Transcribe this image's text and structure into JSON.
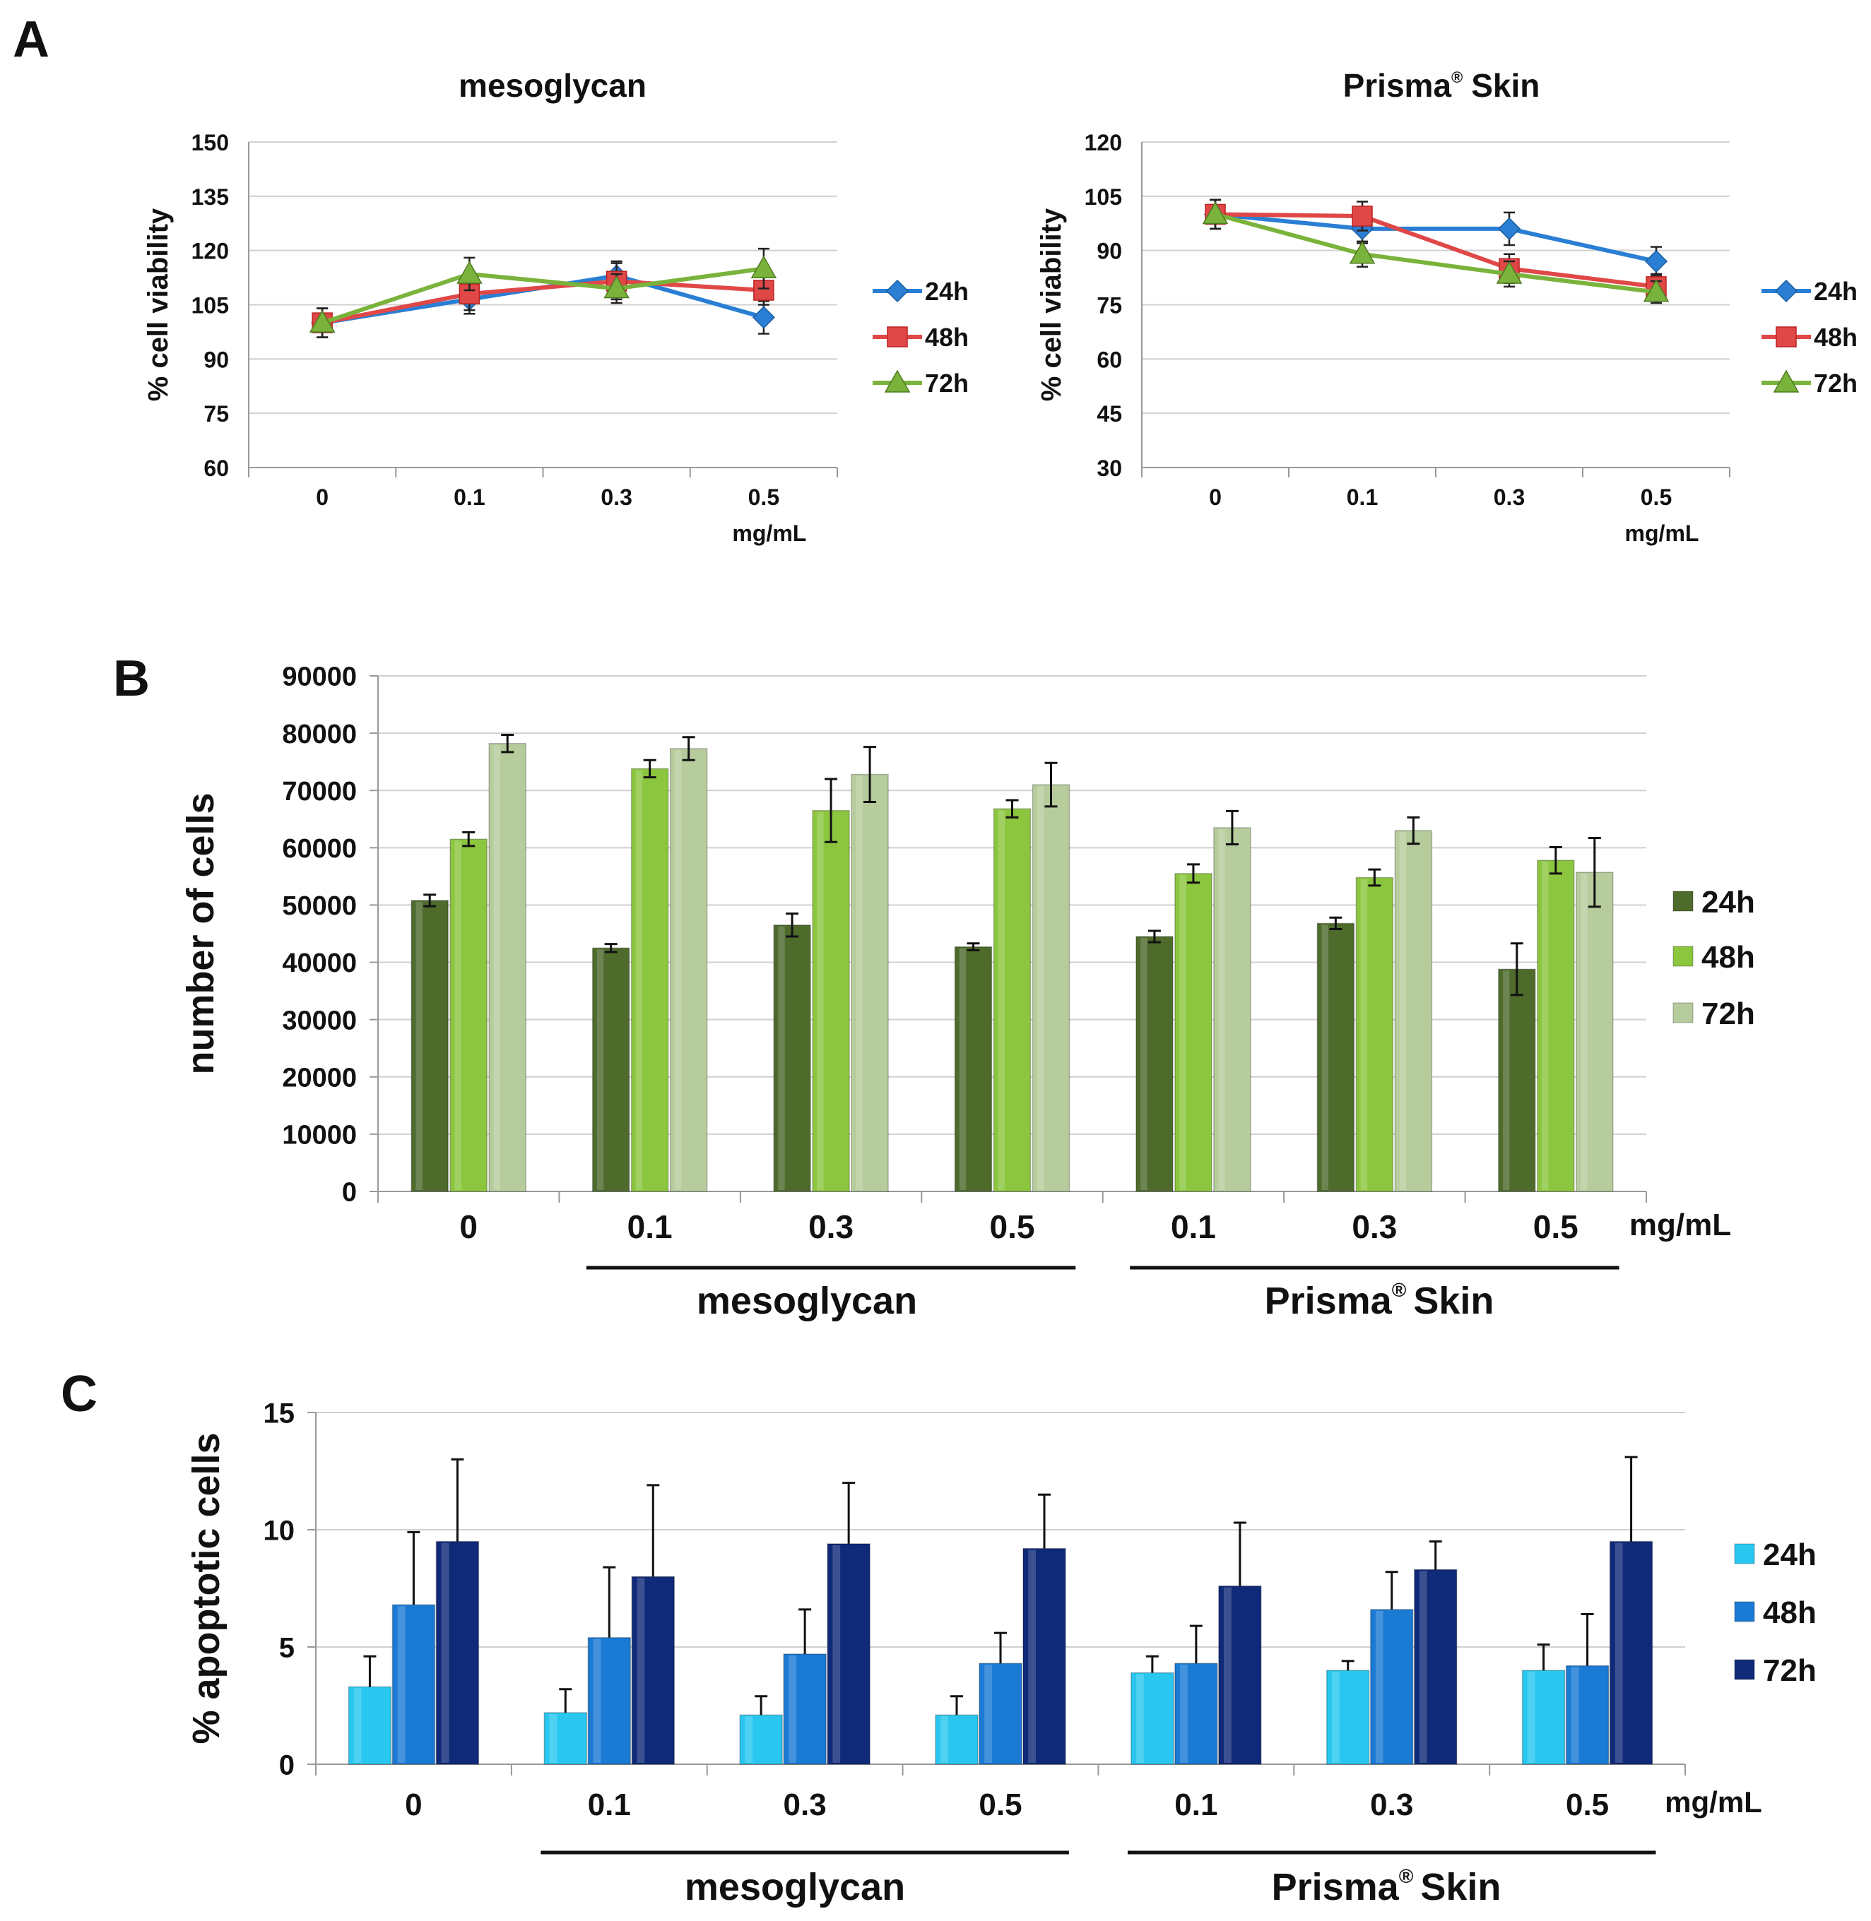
{
  "colors": {
    "series_24h_line": "#2a7fd4",
    "series_48h_line": "#e04848",
    "series_72h_line": "#7ab33b",
    "bar_green_24h": "#4e6b2c",
    "bar_green_48h": "#8cc63f",
    "bar_green_72h": "#b6cc9c",
    "bar_blue_24h": "#29c7ef",
    "bar_blue_48h": "#1a7ad4",
    "bar_blue_72h": "#0f2a78",
    "grid": "#d0d0d0"
  },
  "panels": {
    "a": "A",
    "b": "B",
    "c": "C"
  },
  "labels": {
    "mesoglycan": "mesoglycan",
    "prisma": "Prisma",
    "reg": "®",
    "skin": "Skin",
    "unit": "mg/mL"
  },
  "chart_data": [
    {
      "id": "A1",
      "type": "line",
      "title": "mesoglycan",
      "xlabel": "mg/mL",
      "ylabel": "% cell viability",
      "categories": [
        "0",
        "0.1",
        "0.3",
        "0.5"
      ],
      "ylim": [
        60,
        150
      ],
      "yticks": [
        60,
        75,
        90,
        105,
        120,
        135,
        150
      ],
      "series": [
        {
          "name": "24h",
          "values": [
            100,
            106.5,
            113,
            101.5
          ],
          "errors": [
            4,
            4,
            4,
            4.5
          ]
        },
        {
          "name": "48h",
          "values": [
            100,
            108,
            111.5,
            109
          ],
          "errors": [
            4,
            4.5,
            5,
            4
          ]
        },
        {
          "name": "72h",
          "values": [
            100,
            113.5,
            109.5,
            115
          ],
          "errors": [
            4,
            4.5,
            4,
            5.5
          ]
        }
      ]
    },
    {
      "id": "A2",
      "type": "line",
      "title": "Prisma® Skin",
      "xlabel": "mg/mL",
      "ylabel": "% cell viability",
      "categories": [
        "0",
        "0.1",
        "0.3",
        "0.5"
      ],
      "ylim": [
        30,
        120
      ],
      "yticks": [
        30,
        45,
        60,
        75,
        90,
        105,
        120
      ],
      "series": [
        {
          "name": "24h",
          "values": [
            100,
            96,
            96,
            87
          ],
          "errors": [
            4,
            4,
            4.5,
            4
          ]
        },
        {
          "name": "48h",
          "values": [
            100,
            99.5,
            85,
            80
          ],
          "errors": [
            4,
            4,
            4,
            3.5
          ]
        },
        {
          "name": "72h",
          "values": [
            100,
            89,
            83.5,
            78.5
          ],
          "errors": [
            4,
            3.5,
            3.5,
            3
          ]
        }
      ]
    },
    {
      "id": "B",
      "type": "bar",
      "ylabel": "number of cells",
      "xlabel": "mg/mL",
      "categories": [
        "0",
        "0.1",
        "0.3",
        "0.5",
        "0.1",
        "0.3",
        "0.5"
      ],
      "groups": [
        {
          "label": "mesoglycan",
          "from": 1,
          "to": 3
        },
        {
          "label": "Prisma® Skin",
          "from": 4,
          "to": 6
        }
      ],
      "ylim": [
        0,
        90000
      ],
      "yticks": [
        0,
        10000,
        20000,
        30000,
        40000,
        50000,
        60000,
        70000,
        80000,
        90000
      ],
      "series": [
        {
          "name": "24h",
          "values": [
            50800,
            42500,
            46500,
            42700,
            44500,
            46800,
            38800
          ],
          "errors": [
            1000,
            700,
            2000,
            600,
            1000,
            1000,
            4500
          ]
        },
        {
          "name": "48h",
          "values": [
            61500,
            73800,
            66500,
            66800,
            55500,
            54800,
            57800
          ],
          "errors": [
            1200,
            1500,
            5500,
            1500,
            1600,
            1400,
            2300
          ]
        },
        {
          "name": "72h",
          "values": [
            78200,
            77300,
            72800,
            71000,
            63500,
            63000,
            55700
          ],
          "errors": [
            1500,
            2000,
            4800,
            3800,
            2900,
            2300,
            6000
          ]
        }
      ]
    },
    {
      "id": "C",
      "type": "bar",
      "ylabel": "% apoptotic cells",
      "xlabel": "mg/mL",
      "categories": [
        "0",
        "0.1",
        "0.3",
        "0.5",
        "0.1",
        "0.3",
        "0.5"
      ],
      "groups": [
        {
          "label": "mesoglycan",
          "from": 1,
          "to": 3
        },
        {
          "label": "Prisma® Skin",
          "from": 4,
          "to": 6
        }
      ],
      "ylim": [
        0,
        15
      ],
      "yticks": [
        0,
        5,
        10,
        15
      ],
      "series": [
        {
          "name": "24h",
          "values": [
            3.3,
            2.2,
            2.1,
            2.1,
            3.9,
            4.0,
            4.0
          ],
          "errors": [
            1.3,
            1.0,
            0.8,
            0.8,
            0.7,
            0.4,
            1.1
          ]
        },
        {
          "name": "48h",
          "values": [
            6.8,
            5.4,
            4.7,
            4.3,
            4.3,
            6.6,
            4.2
          ],
          "errors": [
            3.1,
            3.0,
            1.9,
            1.3,
            1.6,
            1.6,
            2.2
          ]
        },
        {
          "name": "72h",
          "values": [
            9.5,
            8.0,
            9.4,
            9.2,
            7.6,
            8.3,
            9.5
          ],
          "errors": [
            3.5,
            3.9,
            2.6,
            2.3,
            2.7,
            1.2,
            3.6
          ]
        }
      ]
    }
  ]
}
